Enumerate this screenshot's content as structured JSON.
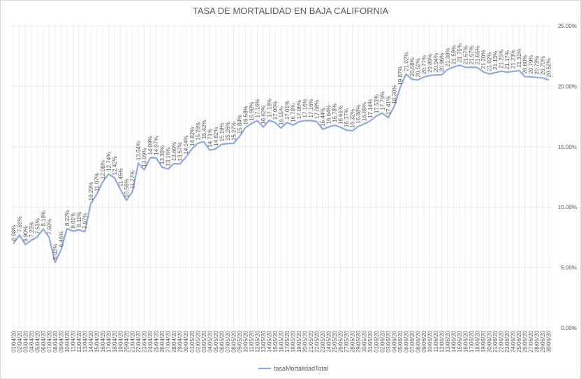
{
  "chart_data": {
    "type": "line",
    "title": "TASA DE MORTALIDAD EN BAJA CALIFORNIA",
    "categories": [
      "01/04/20",
      "02/04/20",
      "03/04/20",
      "04/04/20",
      "05/04/20",
      "06/04/20",
      "07/04/20",
      "08/04/20",
      "09/04/20",
      "10/04/20",
      "11/04/20",
      "12/04/20",
      "13/04/20",
      "14/04/20",
      "15/04/20",
      "16/04/20",
      "17/04/20",
      "18/04/20",
      "19/04/20",
      "20/04/20",
      "21/04/20",
      "22/04/20",
      "23/04/20",
      "24/04/20",
      "25/04/20",
      "26/04/20",
      "27/04/20",
      "28/04/20",
      "29/04/20",
      "30/04/20",
      "01/05/20",
      "02/05/20",
      "03/05/20",
      "04/05/20",
      "05/05/20",
      "06/05/20",
      "07/05/20",
      "08/05/20",
      "09/05/20",
      "10/05/20",
      "11/05/20",
      "12/05/20",
      "13/05/20",
      "14/05/20",
      "15/05/20",
      "16/05/20",
      "17/05/20",
      "18/05/20",
      "19/05/20",
      "20/05/20",
      "21/05/20",
      "22/05/20",
      "23/05/20",
      "24/05/20",
      "25/05/20",
      "26/05/20",
      "27/05/20",
      "28/05/20",
      "29/05/20",
      "30/05/20",
      "31/05/20",
      "01/06/20",
      "02/06/20",
      "03/06/20",
      "04/06/20",
      "05/06/20",
      "06/06/20",
      "07/06/20",
      "08/06/20",
      "09/06/20",
      "10/06/20",
      "11/06/20",
      "12/06/20",
      "13/06/20",
      "14/06/20",
      "15/06/20",
      "16/06/20",
      "17/06/20",
      "18/06/20",
      "19/06/20",
      "20/06/20",
      "21/06/20",
      "22/06/20",
      "23/06/20",
      "24/06/20",
      "25/06/20",
      "26/06/20",
      "27/06/20",
      "28/06/20",
      "29/06/20",
      "30/06/20"
    ],
    "series": [
      {
        "name": "tasaMortalidadTotal",
        "color": "#8faadc",
        "values": [
          6.98,
          7.69,
          6.9,
          7.25,
          7.53,
          8.18,
          7.5,
          5.42,
          6.46,
          8.22,
          8.01,
          8.11,
          7.97,
          10.29,
          11.07,
          12.08,
          12.74,
          12.42,
          11.45,
          10.56,
          11.27,
          13.64,
          13.09,
          14.09,
          14.07,
          13.3,
          13.16,
          13.6,
          13.57,
          14.14,
          14.82,
          15.28,
          15.42,
          14.71,
          14.82,
          15.19,
          15.26,
          15.27,
          15.84,
          16.58,
          16.9,
          17.16,
          16.62,
          17.18,
          17.0,
          16.55,
          17.01,
          16.78,
          17.06,
          17.16,
          17.16,
          17.08,
          16.44,
          16.64,
          16.78,
          16.61,
          16.37,
          16.32,
          16.68,
          16.89,
          17.14,
          17.53,
          17.79,
          17.41,
          18.3,
          19.87,
          21.02,
          20.58,
          20.52,
          20.77,
          20.89,
          20.94,
          20.96,
          21.38,
          21.59,
          21.75,
          21.57,
          21.57,
          21.55,
          21.2,
          21.02,
          21.13,
          21.25,
          21.17,
          21.23,
          21.31,
          20.8,
          20.79,
          20.73,
          20.7,
          20.52
        ],
        "value_labels": [
          "6.98%",
          "7.69%",
          "6.90%",
          "7.25%",
          "7.53%",
          "8.18%",
          "7.50%",
          "5.42%",
          "6.46%",
          "8.22%",
          "8.01%",
          "8.11%",
          "7.97%",
          "10.29%",
          "11.07%",
          "12.08%",
          "12.74%",
          "12.42%",
          "11.45%",
          "10.56%",
          "11.27%",
          "13.64%",
          "13.09%",
          "14.09%",
          "14.07%",
          "13.30%",
          "13.16%",
          "13.60%",
          "13.57%",
          "14.14%",
          "14.82%",
          "15.28%",
          "15.42%",
          "14.71%",
          "14.82%",
          "15.19%",
          "15.26%",
          "15.27%",
          "15.84%",
          "16.58%",
          "16.90%",
          "17.16%",
          "16.62%",
          "17.18%",
          "17.00%",
          "16.55%",
          "17.01%",
          "16.78%",
          "17.06%",
          "17.16%",
          "17.16%",
          "17.08%",
          "16.44%",
          "16.64%",
          "16.78%",
          "16.61%",
          "16.37%",
          "16.32%",
          "16.68%",
          "16.89%",
          "17.14%",
          "17.53%",
          "17.79%",
          "17.41%",
          "18.30%",
          "19.87%",
          "21.02%",
          "20.58%",
          "20.52%",
          "20.77%",
          "20.89%",
          "20.94%",
          "20.96%",
          "21.38%",
          "21.59%",
          "21.75%",
          "21.57%",
          "21.57%",
          "21.55%",
          "21.20%",
          "21.02%",
          "21.13%",
          "21.25%",
          "21.17%",
          "21.23%",
          "21.31%",
          "20.80%",
          "20.79%",
          "20.73%",
          "20.70%",
          "20.52%"
        ]
      }
    ],
    "ylim": [
      0,
      25
    ],
    "yticks": [
      {
        "value": 0,
        "label": "0.00%"
      },
      {
        "value": 5,
        "label": "5.00%"
      },
      {
        "value": 10,
        "label": "10.00%"
      },
      {
        "value": 15,
        "label": "15.00%"
      },
      {
        "value": 20,
        "label": "20.00%"
      },
      {
        "value": 25,
        "label": "25.00%"
      }
    ],
    "grid": true,
    "legend": "bottom"
  }
}
